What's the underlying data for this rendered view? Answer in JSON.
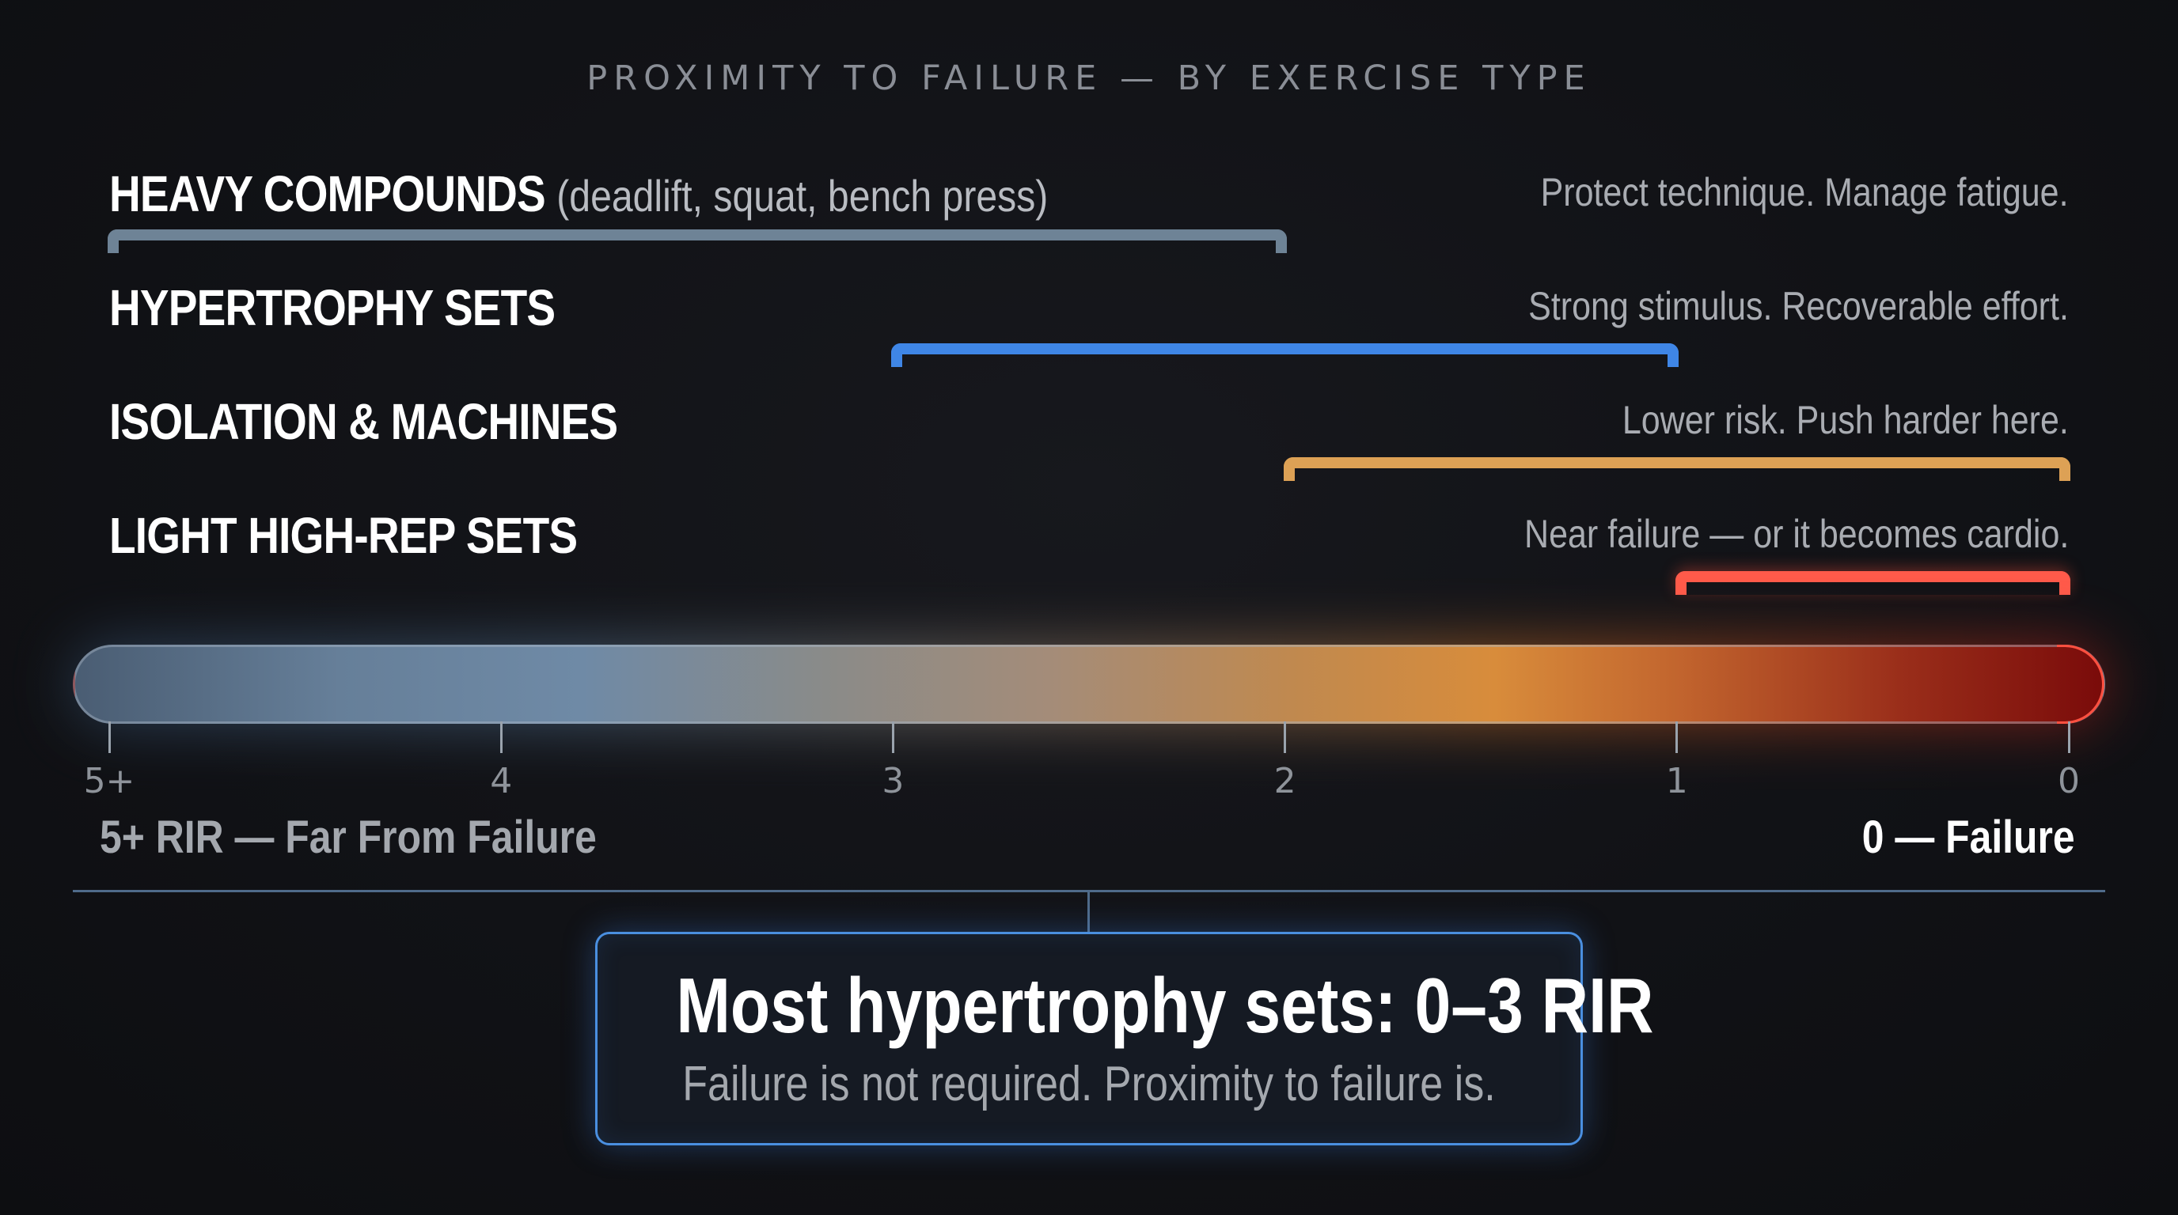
{
  "title": "PROXIMITY TO FAILURE — BY EXERCISE TYPE",
  "rows": [
    {
      "label": "HEAVY COMPOUNDS",
      "detail": "(deadlift, squat, bench press)",
      "note": "Protect technique. Manage fatigue.",
      "range_rir": [
        2,
        5
      ],
      "color": "#6e8396"
    },
    {
      "label": "HYPERTROPHY SETS",
      "detail": "",
      "note": "Strong stimulus. Recoverable effort.",
      "range_rir": [
        1,
        3
      ],
      "color": "#3f86e6"
    },
    {
      "label": "ISOLATION & MACHINES",
      "detail": "",
      "note": "Lower risk. Push harder here.",
      "range_rir": [
        0,
        2
      ],
      "color": "#dda155"
    },
    {
      "label": "LIGHT HIGH-REP SETS",
      "detail": "",
      "note": "Near failure — or it becomes cardio.",
      "range_rir": [
        0,
        1
      ],
      "color": "#ff5a4a"
    }
  ],
  "scale": {
    "ticks": [
      "5+",
      "4",
      "3",
      "2",
      "1",
      "0"
    ],
    "tick_values": [
      5,
      4,
      3,
      2,
      1,
      0
    ],
    "left_label": "5+ RIR — Far From Failure",
    "right_label": "0 — Failure"
  },
  "callout": {
    "headline": "Most hypertrophy sets: 0–3 RIR",
    "subline": "Failure is not required. Proximity to failure is."
  }
}
